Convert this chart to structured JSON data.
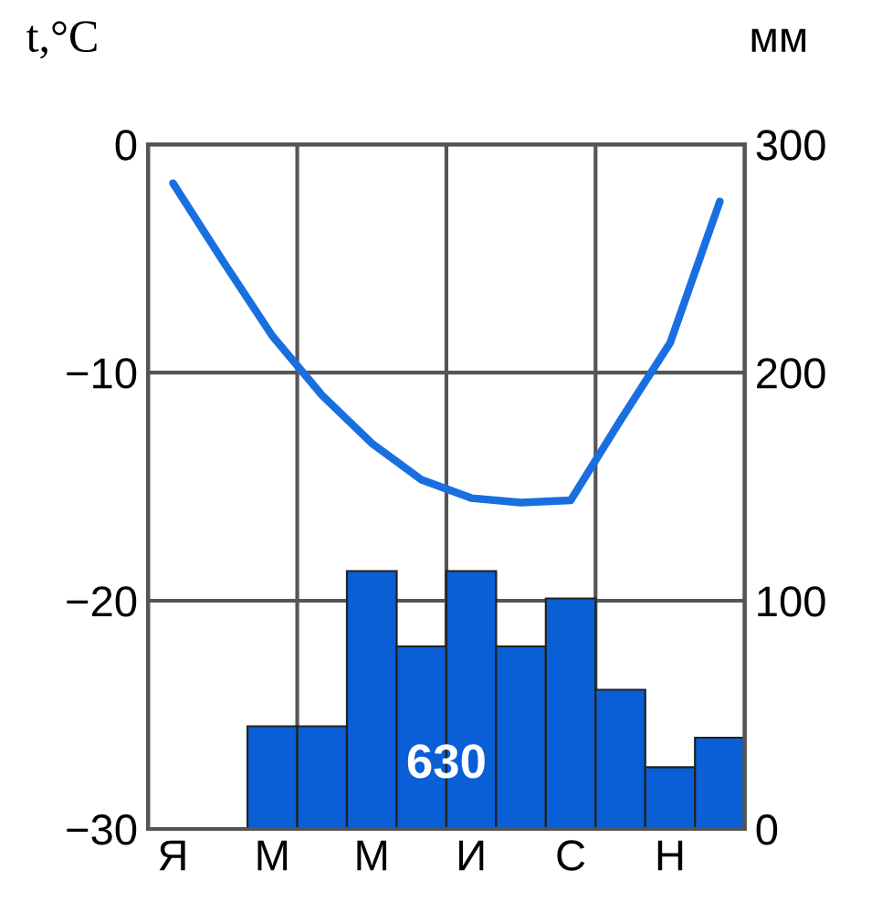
{
  "chart_data": {
    "type": "bar",
    "ylabel": "t,°C",
    "y2label": "мм",
    "annotations": [
      "630"
    ],
    "categories": [
      "Я",
      null,
      "М",
      null,
      "М",
      null,
      "И",
      null,
      "С",
      null,
      "Н",
      null
    ],
    "ylim": [
      -30,
      0
    ],
    "yticks": [
      {
        "value": -30,
        "label": "−30"
      },
      {
        "value": -20,
        "label": "−20"
      },
      {
        "value": -10,
        "label": "−10"
      },
      0
    ],
    "y2lim": [
      0,
      300
    ],
    "y2ticks": [
      0,
      100,
      200,
      300
    ],
    "grid": "y",
    "series": [
      {
        "axis": "y2",
        "color": "#0a5fd6",
        "values": [
          null,
          null,
          45,
          45,
          113,
          80,
          113,
          80,
          101,
          61,
          27,
          40
        ]
      },
      {
        "type": "line",
        "color": "#1a6fe0",
        "values": [
          -1.7,
          -5.1,
          -8.4,
          -11.0,
          -13.1,
          -14.7,
          -15.5,
          -15.7,
          -15.6,
          -12.1,
          -8.7,
          -2.5
        ]
      }
    ]
  }
}
